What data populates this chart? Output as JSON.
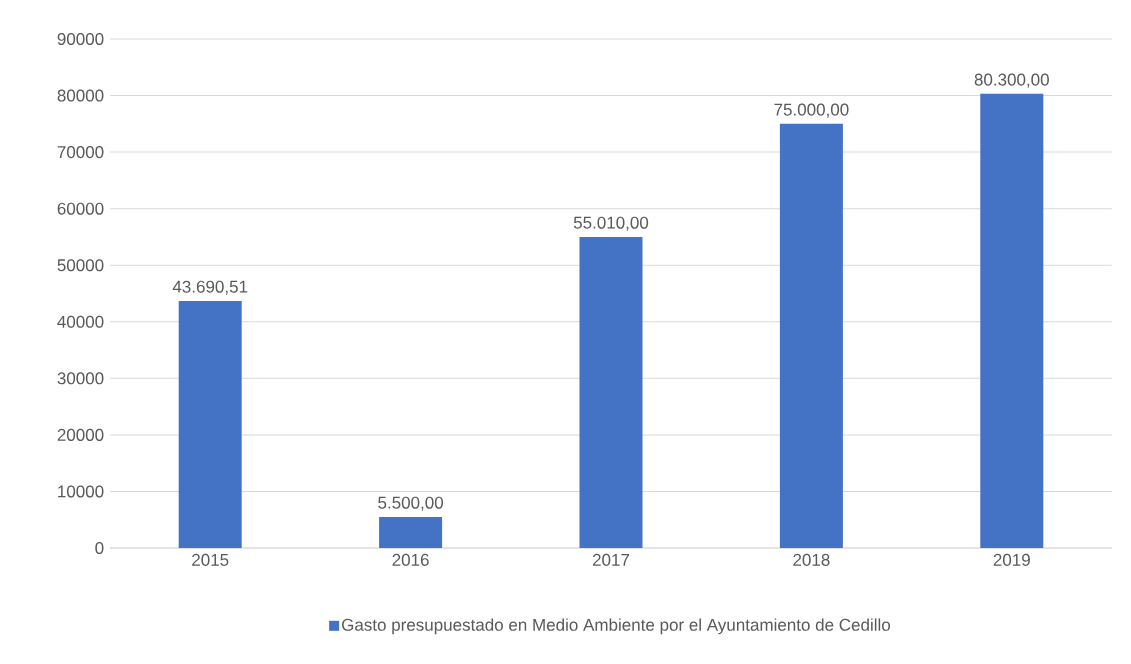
{
  "chart_data": {
    "type": "bar",
    "categories": [
      "2015",
      "2016",
      "2017",
      "2018",
      "2019"
    ],
    "series": [
      {
        "name": "Gasto presupuestado en Medio Ambiente por el Ayuntamiento de Cedillo",
        "color": "#4472c4",
        "values": [
          43690.51,
          5500,
          55010,
          75000,
          80300
        ],
        "value_labels": [
          "43.690,51",
          "5.500,00",
          "55.010,00",
          "75.000,00",
          "80.300,00"
        ]
      }
    ],
    "ylim": [
      0,
      90000
    ],
    "yticks": [
      0,
      10000,
      20000,
      30000,
      40000,
      50000,
      60000,
      70000,
      80000,
      90000
    ],
    "grid": "y",
    "legend": "bottom"
  }
}
